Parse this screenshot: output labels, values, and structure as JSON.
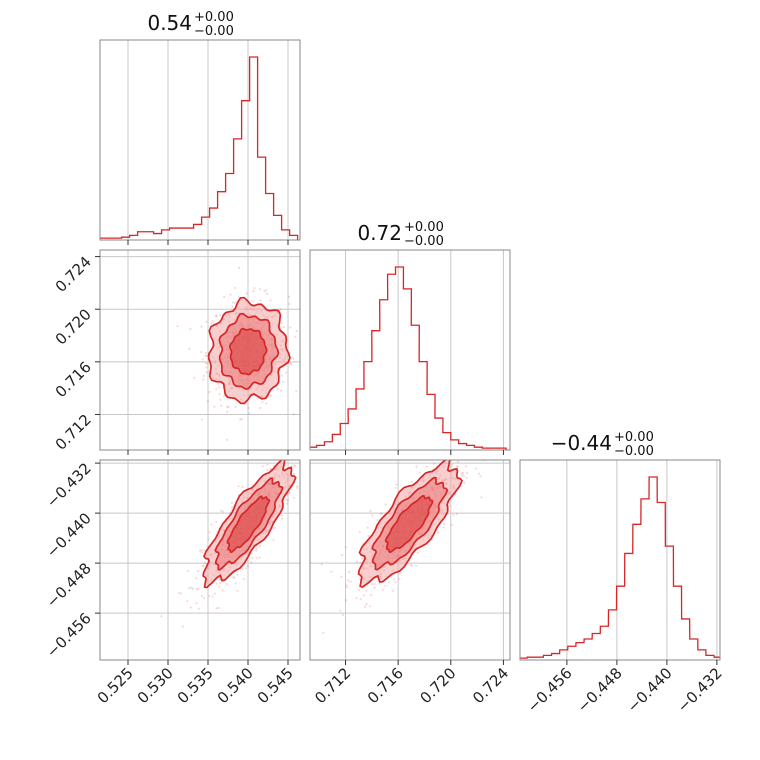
{
  "chart_data": {
    "type": "corner",
    "color": "#d62728",
    "fill_color": "#f2a6a6",
    "grid": true,
    "params": [
      {
        "title_value": "0.54",
        "title_plus": "+0.00",
        "title_minus": "−0.00",
        "range": [
          0.5215,
          0.5465
        ],
        "ticks": [
          0.525,
          0.53,
          0.535,
          0.54,
          0.545
        ],
        "tick_labels": [
          "0.525",
          "0.530",
          "0.535",
          "0.540",
          "0.545"
        ]
      },
      {
        "title_value": "0.72",
        "title_plus": "+0.00",
        "title_minus": "−0.00",
        "range": [
          0.7093,
          0.7245
        ],
        "ticks": [
          0.712,
          0.716,
          0.72,
          0.724
        ],
        "tick_labels": [
          "0.712",
          "0.716",
          "0.720",
          "0.724"
        ]
      },
      {
        "title_value": "−0.44",
        "title_plus": "+0.00",
        "title_minus": "−0.00",
        "range": [
          -0.4635,
          -0.4315
        ],
        "ticks": [
          -0.456,
          -0.448,
          -0.44,
          -0.432
        ],
        "tick_labels": [
          "−0.456",
          "−0.448",
          "−0.440",
          "−0.432"
        ]
      }
    ],
    "histograms": [
      {
        "param": 0,
        "bin_centers": [
          0.5217,
          0.5227,
          0.5237,
          0.5247,
          0.5257,
          0.5267,
          0.5277,
          0.5287,
          0.5297,
          0.5307,
          0.5317,
          0.5327,
          0.5337,
          0.5347,
          0.5357,
          0.5367,
          0.5377,
          0.5387,
          0.5397,
          0.5407,
          0.5417,
          0.5427,
          0.5437,
          0.5447,
          0.5457
        ],
        "counts": [
          0.005,
          0.005,
          0.005,
          0.01,
          0.02,
          0.04,
          0.04,
          0.03,
          0.05,
          0.06,
          0.06,
          0.06,
          0.08,
          0.12,
          0.17,
          0.26,
          0.36,
          0.55,
          0.76,
          1.0,
          0.45,
          0.25,
          0.13,
          0.05,
          0.02
        ]
      },
      {
        "param": 1,
        "bin_centers": [
          0.7095,
          0.7101,
          0.7107,
          0.7113,
          0.7119,
          0.7125,
          0.7131,
          0.7137,
          0.7143,
          0.7149,
          0.7155,
          0.7161,
          0.7167,
          0.7173,
          0.7179,
          0.7185,
          0.7191,
          0.7197,
          0.7203,
          0.7209,
          0.7215,
          0.7221,
          0.7227,
          0.7233,
          0.7239
        ],
        "counts": [
          0.01,
          0.02,
          0.04,
          0.08,
          0.14,
          0.22,
          0.33,
          0.48,
          0.65,
          0.82,
          0.96,
          1.0,
          0.88,
          0.68,
          0.48,
          0.3,
          0.17,
          0.09,
          0.05,
          0.03,
          0.02,
          0.01,
          0.005,
          0.005,
          0.005
        ]
      },
      {
        "param": 2,
        "bin_centers": [
          -0.463,
          -0.4617,
          -0.4604,
          -0.4591,
          -0.4578,
          -0.4565,
          -0.4552,
          -0.4539,
          -0.4526,
          -0.4513,
          -0.45,
          -0.4487,
          -0.4474,
          -0.4461,
          -0.4448,
          -0.4435,
          -0.4422,
          -0.4409,
          -0.4396,
          -0.4383,
          -0.437,
          -0.4357,
          -0.4344,
          -0.4331,
          -0.4318
        ],
        "counts": [
          0.005,
          0.01,
          0.01,
          0.02,
          0.03,
          0.05,
          0.07,
          0.09,
          0.11,
          0.14,
          0.18,
          0.27,
          0.4,
          0.58,
          0.74,
          0.88,
          1.0,
          0.86,
          0.62,
          0.4,
          0.22,
          0.11,
          0.05,
          0.02,
          0.01
        ]
      }
    ],
    "scatter_2d": [
      {
        "x_param": 0,
        "y_param": 1,
        "center": [
          0.54,
          0.7168
        ],
        "sd": [
          0.0022,
          0.0017
        ],
        "corr": 0.05,
        "contour_levels_sigma": [
          1.0,
          1.6,
          2.2
        ]
      },
      {
        "x_param": 0,
        "y_param": 2,
        "center": [
          0.54,
          -0.4417
        ],
        "sd": [
          0.0025,
          0.0043
        ],
        "corr": 0.82,
        "contour_levels_sigma": [
          1.0,
          1.6,
          2.2
        ]
      },
      {
        "x_param": 1,
        "y_param": 2,
        "center": [
          0.7168,
          -0.4417
        ],
        "sd": [
          0.0017,
          0.0043
        ],
        "corr": 0.78,
        "contour_levels_sigma": [
          1.0,
          1.6,
          2.2
        ]
      }
    ]
  }
}
